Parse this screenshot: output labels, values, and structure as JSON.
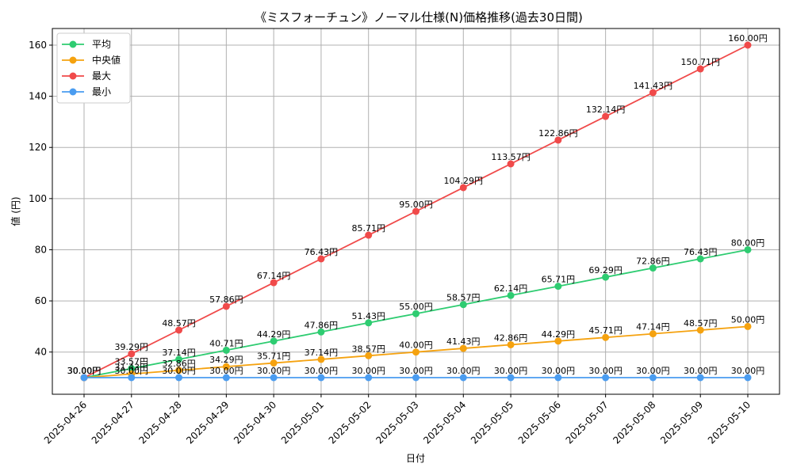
{
  "chart_data": {
    "type": "line",
    "title": "《ミスフォーチュン》ノーマル仕様(N)価格推移(過去30日間)",
    "xlabel": "日付",
    "ylabel": "値 (円)",
    "ylim": [
      23.5,
      166.5
    ],
    "yticks": [
      40,
      60,
      80,
      100,
      120,
      140,
      160
    ],
    "grid": true,
    "legend_position": "top-left",
    "value_suffix": "円",
    "categories": [
      "2025-04-26",
      "2025-04-27",
      "2025-04-28",
      "2025-04-29",
      "2025-04-30",
      "2025-05-01",
      "2025-05-02",
      "2025-05-03",
      "2025-05-04",
      "2025-05-05",
      "2025-05-06",
      "2025-05-07",
      "2025-05-08",
      "2025-05-09",
      "2025-05-10"
    ],
    "series": [
      {
        "name": "平均",
        "color": "#2ecc71",
        "values": [
          30.0,
          33.57,
          37.14,
          40.71,
          44.29,
          47.86,
          51.43,
          55.0,
          58.57,
          62.14,
          65.71,
          69.29,
          72.86,
          76.43,
          80.0
        ]
      },
      {
        "name": "中央値",
        "color": "#f5a20f",
        "values": [
          30.0,
          31.43,
          32.86,
          34.29,
          35.71,
          37.14,
          38.57,
          40.0,
          41.43,
          42.86,
          44.29,
          45.71,
          47.14,
          48.57,
          50.0
        ]
      },
      {
        "name": "最大",
        "color": "#f04a4a",
        "values": [
          30.0,
          39.29,
          48.57,
          57.86,
          67.14,
          76.43,
          85.71,
          95.0,
          104.29,
          113.57,
          122.86,
          132.14,
          141.43,
          150.71,
          160.0
        ]
      },
      {
        "name": "最小",
        "color": "#4a9cf0",
        "values": [
          30.0,
          30.0,
          30.0,
          30.0,
          30.0,
          30.0,
          30.0,
          30.0,
          30.0,
          30.0,
          30.0,
          30.0,
          30.0,
          30.0,
          30.0
        ]
      }
    ]
  }
}
